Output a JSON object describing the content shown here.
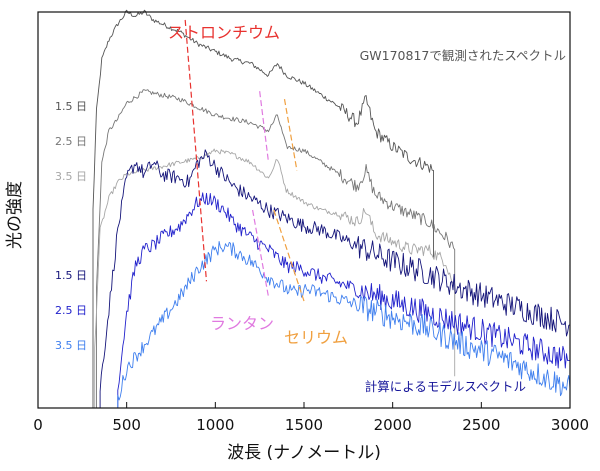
{
  "chart_data": {
    "type": "line",
    "xlabel": "波長 (ナノメートル)",
    "ylabel": "光の強度",
    "xlim": [
      0,
      3000
    ],
    "xticks": [
      0,
      500,
      1000,
      1500,
      2000,
      2500,
      3000
    ],
    "xtick_labels": [
      "0",
      "500",
      "1000",
      "1500",
      "2000",
      "2500",
      "3000"
    ],
    "grid": false,
    "observed_group_label": "GW170817で観測されたスペクトル",
    "model_group_label": "計算によるモデルスペクトル",
    "annotations": {
      "strontium": "ストロンチウム",
      "lanthanum": "ランタン",
      "cerium": "セリウム"
    },
    "series": [
      {
        "name": "1.5 日",
        "group": "observed",
        "color": "#555555",
        "x": [
          310,
          330,
          360,
          400,
          450,
          500,
          550,
          600,
          650,
          700,
          800,
          900,
          1000,
          1100,
          1200,
          1300,
          1350,
          1400,
          1500,
          1600,
          1700,
          1800,
          1850,
          1900,
          2000,
          2100,
          2200,
          2230
        ],
        "y": [
          0.5,
          0.75,
          0.88,
          0.93,
          0.97,
          1.0,
          0.99,
          1.0,
          0.98,
          0.97,
          0.95,
          0.92,
          0.9,
          0.88,
          0.87,
          0.84,
          0.87,
          0.84,
          0.82,
          0.79,
          0.76,
          0.72,
          0.78,
          0.7,
          0.66,
          0.63,
          0.61,
          0.6
        ]
      },
      {
        "name": "2.5 日",
        "group": "observed",
        "color": "#777777",
        "x": [
          330,
          360,
          400,
          450,
          500,
          600,
          700,
          800,
          900,
          1000,
          1100,
          1200,
          1300,
          1350,
          1400,
          1500,
          1600,
          1700,
          1800,
          1850,
          1900,
          2000,
          2100,
          2200,
          2300,
          2350
        ],
        "y": [
          0.3,
          0.62,
          0.7,
          0.73,
          0.77,
          0.8,
          0.79,
          0.78,
          0.76,
          0.74,
          0.73,
          0.72,
          0.7,
          0.74,
          0.66,
          0.65,
          0.62,
          0.59,
          0.56,
          0.6,
          0.54,
          0.51,
          0.49,
          0.47,
          0.43,
          0.4
        ]
      },
      {
        "name": "3.5 日",
        "group": "observed",
        "color": "#a7a7a7",
        "x": [
          320,
          350,
          400,
          450,
          500,
          600,
          700,
          800,
          900,
          1000,
          1100,
          1200,
          1300,
          1350,
          1400,
          1500,
          1600,
          1700,
          1800,
          1850,
          1900,
          2000,
          2100,
          2200,
          2300,
          2350
        ],
        "y": [
          0.15,
          0.45,
          0.53,
          0.57,
          0.59,
          0.6,
          0.61,
          0.62,
          0.63,
          0.65,
          0.64,
          0.62,
          0.58,
          0.63,
          0.55,
          0.52,
          0.5,
          0.49,
          0.47,
          0.5,
          0.44,
          0.42,
          0.4,
          0.4,
          0.37,
          0.3
        ]
      },
      {
        "name": "1.5 日",
        "group": "model",
        "color": "#15157a",
        "x": [
          350,
          400,
          450,
          500,
          550,
          600,
          650,
          700,
          800,
          850,
          900,
          950,
          1000,
          1100,
          1200,
          1300,
          1400,
          1500,
          1600,
          1700,
          1800,
          1900,
          2000,
          2200,
          2400,
          2600,
          2800,
          3000
        ],
        "y": [
          0.05,
          0.25,
          0.45,
          0.58,
          0.62,
          0.59,
          0.62,
          0.59,
          0.58,
          0.57,
          0.62,
          0.64,
          0.61,
          0.56,
          0.53,
          0.5,
          0.48,
          0.46,
          0.45,
          0.43,
          0.41,
          0.39,
          0.37,
          0.34,
          0.3,
          0.27,
          0.24,
          0.21
        ]
      },
      {
        "name": "2.5 日",
        "group": "model",
        "color": "#2222cc",
        "x": [
          450,
          500,
          550,
          600,
          650,
          700,
          800,
          900,
          950,
          1000,
          1050,
          1100,
          1200,
          1300,
          1400,
          1500,
          1600,
          1800,
          2000,
          2200,
          2400,
          2600,
          2800,
          3000
        ],
        "y": [
          0.05,
          0.24,
          0.36,
          0.4,
          0.41,
          0.43,
          0.46,
          0.52,
          0.53,
          0.52,
          0.5,
          0.47,
          0.43,
          0.4,
          0.36,
          0.35,
          0.33,
          0.3,
          0.27,
          0.24,
          0.21,
          0.18,
          0.15,
          0.12
        ]
      },
      {
        "name": "3.5 日",
        "group": "model",
        "color": "#3f7fee",
        "x": [
          450,
          500,
          600,
          700,
          800,
          900,
          1000,
          1050,
          1100,
          1200,
          1300,
          1400,
          1450,
          1500,
          1600,
          1800,
          2000,
          2200,
          2400,
          2600,
          2800,
          3000
        ],
        "y": [
          0.02,
          0.1,
          0.16,
          0.22,
          0.28,
          0.35,
          0.4,
          0.41,
          0.4,
          0.37,
          0.33,
          0.3,
          0.29,
          0.3,
          0.29,
          0.26,
          0.23,
          0.2,
          0.16,
          0.13,
          0.09,
          0.05
        ]
      }
    ],
    "feature_lines": [
      {
        "element": "strontium",
        "color": "#e8322f",
        "points": [
          [
            830,
            0.98
          ],
          [
            950,
            0.32
          ]
        ]
      },
      {
        "element": "lanthanum",
        "color": "#e07ae0",
        "points": [
          [
            1250,
            0.8
          ],
          [
            1300,
            0.62
          ],
          [
            1210,
            0.5
          ],
          [
            1300,
            0.28
          ]
        ]
      },
      {
        "element": "cerium",
        "color": "#f0a040",
        "points": [
          [
            1390,
            0.78
          ],
          [
            1460,
            0.6
          ],
          [
            1330,
            0.5
          ],
          [
            1500,
            0.27
          ]
        ]
      }
    ]
  }
}
